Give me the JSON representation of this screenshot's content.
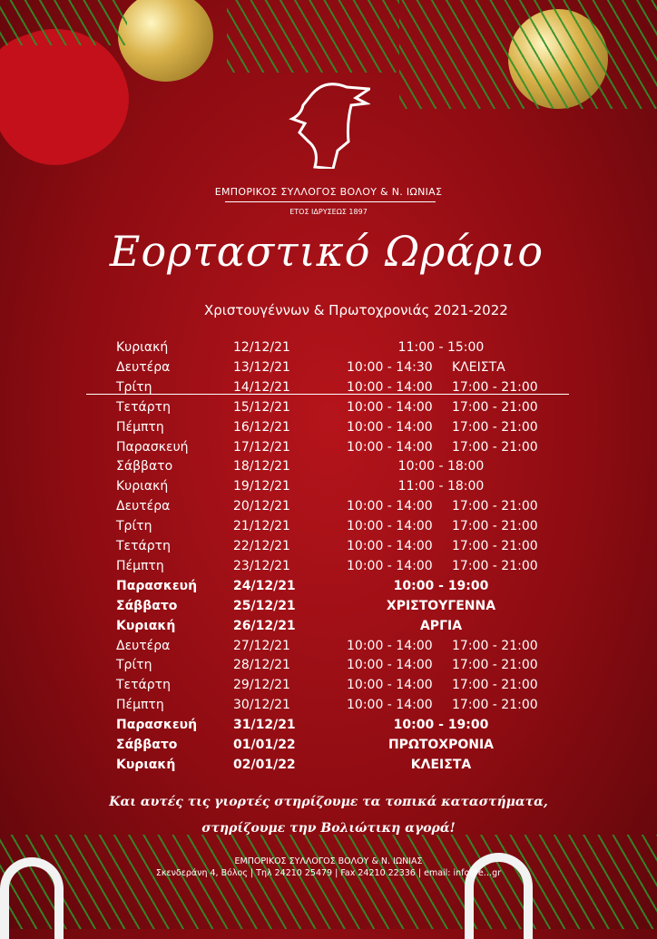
{
  "header": {
    "org_name": "ΕΜΠΟΡΙΚΟΣ ΣΥΛΛΟΓΟΣ ΒΟΛΟΥ & Ν. ΙΩΝΙΑΣ",
    "founded": "ΕΤΟΣ ΙΔΡΥΣΕΩΣ 1897"
  },
  "title": "Εορταστικό Ωράριο",
  "subtitle": "Χριστουγέννων & Πρωτοχρονιάς 2021-2022",
  "schedule": [
    {
      "day": "Κυριακή",
      "date": "12/12/21",
      "hours": "11:00  -  15:00"
    },
    {
      "day": "Δευτέρα",
      "date": "13/12/21",
      "morning": "10:00 - 14:30",
      "evening": "ΚΛΕΙΣΤΑ"
    },
    {
      "day": "Τρίτη",
      "date": "14/12/21",
      "morning": "10:00 - 14:00",
      "evening": "17:00 - 21:00"
    },
    {
      "day": "Τετάρτη",
      "date": "15/12/21",
      "morning": "10:00 - 14:00",
      "evening": "17:00 - 21:00"
    },
    {
      "day": "Πέμπτη",
      "date": "16/12/21",
      "morning": "10:00 - 14:00",
      "evening": "17:00 - 21:00"
    },
    {
      "day": "Παρασκευή",
      "date": "17/12/21",
      "morning": "10:00 - 14:00",
      "evening": "17:00 - 21:00"
    },
    {
      "day": "Σάββατο",
      "date": "18/12/21",
      "hours": "10:00  -  18:00"
    },
    {
      "day": "Κυριακή",
      "date": "19/12/21",
      "hours": "11:00  -  18:00"
    },
    {
      "day": "Δευτέρα",
      "date": "20/12/21",
      "morning": "10:00 - 14:00",
      "evening": "17:00 - 21:00"
    },
    {
      "day": "Τρίτη",
      "date": "21/12/21",
      "morning": "10:00 - 14:00",
      "evening": "17:00 - 21:00"
    },
    {
      "day": "Τετάρτη",
      "date": "22/12/21",
      "morning": "10:00 - 14:00",
      "evening": "17:00 - 21:00"
    },
    {
      "day": "Πέμπτη",
      "date": "23/12/21",
      "morning": "10:00 - 14:00",
      "evening": "17:00 - 21:00"
    },
    {
      "day": "Παρασκευή",
      "date": "24/12/21",
      "hours": "10:00  -  19:00",
      "bold": true
    },
    {
      "day": "Σάββατο",
      "date": "25/12/21",
      "hours": "ΧΡΙΣΤΟΥΓΕΝΝΑ",
      "bold": true
    },
    {
      "day": "Κυριακή",
      "date": "26/12/21",
      "hours": "ΑΡΓΙΑ",
      "bold": true
    },
    {
      "day": "Δευτέρα",
      "date": "27/12/21",
      "morning": "10:00 - 14:00",
      "evening": "17:00 - 21:00"
    },
    {
      "day": "Τρίτη",
      "date": "28/12/21",
      "morning": "10:00 - 14:00",
      "evening": "17:00 - 21:00"
    },
    {
      "day": "Τετάρτη",
      "date": "29/12/21",
      "morning": "10:00 - 14:00",
      "evening": "17:00 - 21:00"
    },
    {
      "day": "Πέμπτη",
      "date": "30/12/21",
      "morning": "10:00 - 14:00",
      "evening": "17:00 - 21:00"
    },
    {
      "day": "Παρασκευή",
      "date": "31/12/21",
      "hours": "10:00  -  19:00",
      "bold": true
    },
    {
      "day": "Σάββατο",
      "date": "01/01/22",
      "hours": "ΠΡΩΤΟΧΡΟΝΙΑ",
      "bold": true
    },
    {
      "day": "Κυριακή",
      "date": "02/01/22",
      "hours": "ΚΛΕΙΣΤΑ",
      "bold": true
    }
  ],
  "slogan": {
    "line1": "Και αυτές τις γιορτές στηρίζουμε τα τοπικά καταστήματα,",
    "line2": "στηρίζουμε την Βολιώτικη αγορά!"
  },
  "footer": {
    "org_name": "ΕΜΠΟΡΙΚΟΣ ΣΥΛΛΟΓΟΣ ΒΟΛΟΥ & Ν. ΙΩΝΙΑΣ",
    "contact": "Σκενδεράνη 4, Βόλος | Τηλ 24210 25479 | Fax 24210 22336 | email: info@e…gr"
  },
  "colors": {
    "background": "#a0101a",
    "text": "#ffffff",
    "ornament_gold": "#d9b24a",
    "pine": "#2f8f2a"
  },
  "icons": {
    "logo": "hermes-head-logo"
  }
}
